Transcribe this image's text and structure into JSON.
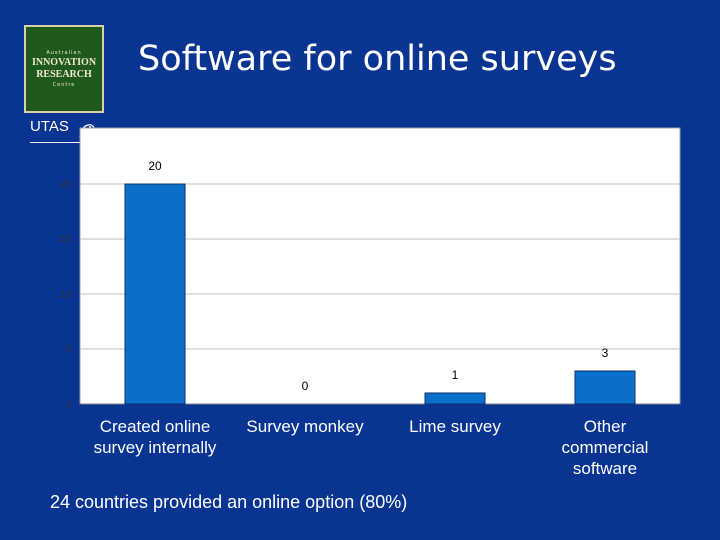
{
  "logo": {
    "top_line": "Australian",
    "line1": "INNOVATION",
    "line2": "RESEARCH",
    "bottom_line": "Centre"
  },
  "utas": {
    "text": "UTAS"
  },
  "title": "Software for online surveys",
  "colors": {
    "background": "#0a3491",
    "plot_area": "#ffffff",
    "bar": "#0a6fc8",
    "gridline": "#c0c0c0"
  },
  "chart_data": {
    "type": "bar",
    "categories": [
      "Created online survey internally",
      "Survey monkey",
      "Lime survey",
      "Other commercial software"
    ],
    "category_lines": [
      [
        "Created online",
        "survey internally"
      ],
      [
        "Survey monkey"
      ],
      [
        "Lime survey"
      ],
      [
        "Other",
        "commercial",
        "software"
      ]
    ],
    "values": [
      20,
      0,
      1,
      3
    ],
    "data_labels": [
      "20",
      "0",
      "1",
      "3"
    ],
    "y_ticks": [
      0,
      5,
      10,
      15,
      20
    ],
    "ylim": [
      0,
      20
    ],
    "grid": true,
    "legend": "none"
  },
  "footnote": "24 countries provided an online option (80%)"
}
